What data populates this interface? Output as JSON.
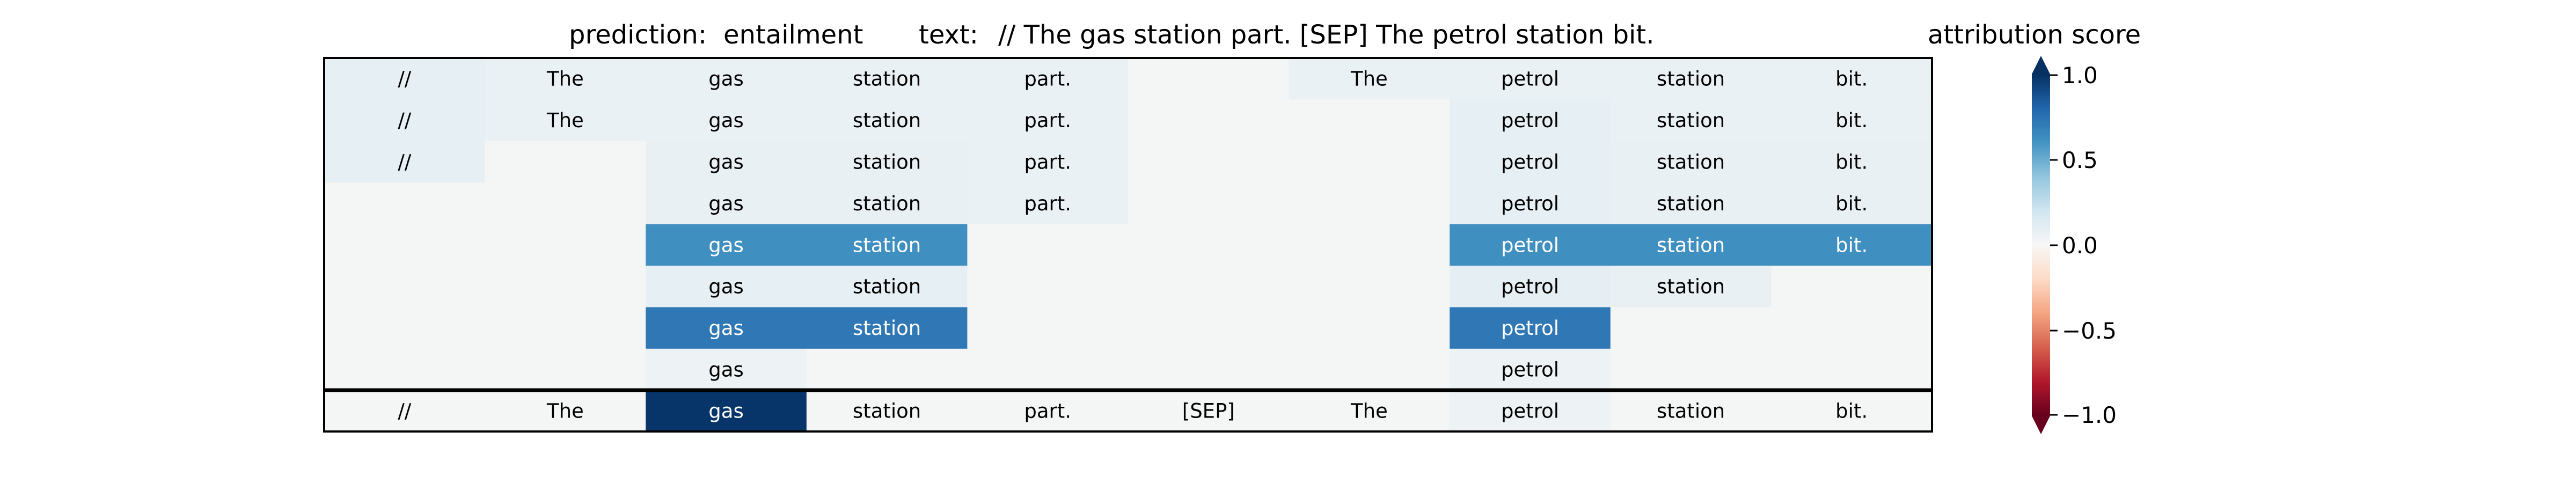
{
  "title": {
    "prediction_label": "prediction:",
    "prediction_value": "entailment",
    "text_label": "text:",
    "text_value": "// The gas station part. [SEP] The petrol station bit."
  },
  "colorbar": {
    "title": "attribution score",
    "ticks": [
      "1.0",
      "0.5",
      "0.0",
      "−0.5",
      "−1.0"
    ]
  },
  "chart_data": {
    "type": "heatmap",
    "colormap": "RdBu",
    "vmin": -1.0,
    "vmax": 1.0,
    "grid": false,
    "tokens": [
      "//",
      "The",
      "gas",
      "station",
      "part.",
      "[SEP]",
      "The",
      "petrol",
      "station",
      "bit."
    ],
    "layers": [
      {
        "values": [
          0.08,
          0.06,
          0.06,
          0.06,
          0.06,
          0.0,
          0.06,
          0.06,
          0.06,
          0.06
        ],
        "labels": [
          "//",
          "The",
          "gas",
          "station",
          "part.",
          "",
          "The",
          "petrol",
          "station",
          "bit."
        ]
      },
      {
        "values": [
          0.08,
          0.06,
          0.06,
          0.06,
          0.06,
          0.0,
          0.0,
          0.08,
          0.06,
          0.06
        ],
        "labels": [
          "//",
          "The",
          "gas",
          "station",
          "part.",
          "",
          "",
          "petrol",
          "station",
          "bit."
        ]
      },
      {
        "values": [
          0.08,
          0.0,
          0.07,
          0.07,
          0.06,
          0.0,
          0.0,
          0.08,
          0.07,
          0.07
        ],
        "labels": [
          "//",
          "",
          "gas",
          "station",
          "part.",
          "",
          "",
          "petrol",
          "station",
          "bit."
        ]
      },
      {
        "values": [
          0.0,
          0.0,
          0.07,
          0.07,
          0.06,
          0.0,
          0.0,
          0.08,
          0.07,
          0.07
        ],
        "labels": [
          "",
          "",
          "gas",
          "station",
          "part.",
          "",
          "",
          "petrol",
          "station",
          "bit."
        ]
      },
      {
        "values": [
          0.0,
          0.0,
          0.62,
          0.62,
          0.0,
          0.0,
          0.0,
          0.62,
          0.62,
          0.62
        ],
        "labels": [
          "",
          "",
          "gas",
          "station",
          "",
          "",
          "",
          "petrol",
          "station",
          "bit."
        ]
      },
      {
        "values": [
          0.0,
          0.0,
          0.08,
          0.08,
          0.0,
          0.0,
          0.0,
          0.09,
          0.07,
          0.0
        ],
        "labels": [
          "",
          "",
          "gas",
          "station",
          "",
          "",
          "",
          "petrol",
          "station",
          ""
        ]
      },
      {
        "values": [
          0.0,
          0.0,
          0.72,
          0.72,
          0.0,
          0.0,
          0.0,
          0.72,
          0.0,
          0.0
        ],
        "labels": [
          "",
          "",
          "gas",
          "station",
          "",
          "",
          "",
          "petrol",
          "",
          ""
        ]
      },
      {
        "values": [
          0.0,
          0.0,
          0.04,
          0.0,
          0.0,
          0.0,
          0.0,
          0.04,
          0.0,
          0.0
        ],
        "labels": [
          "",
          "",
          "gas",
          "",
          "",
          "",
          "",
          "petrol",
          "",
          ""
        ]
      }
    ],
    "summary_row": {
      "values": [
        0.0,
        0.0,
        0.98,
        0.0,
        0.0,
        0.0,
        0.0,
        0.04,
        0.0,
        0.0
      ],
      "labels": [
        "//",
        "The",
        "gas",
        "station",
        "part.",
        "[SEP]",
        "The",
        "petrol",
        "station",
        "bit."
      ]
    }
  }
}
